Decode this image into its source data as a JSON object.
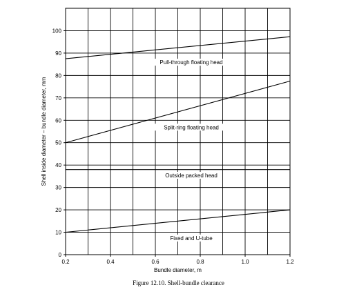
{
  "chart_data": {
    "type": "line",
    "xlabel": "Bundle diameter, m",
    "ylabel": "Shell inside diameter – bundle diameter, mm",
    "xlim": [
      0.2,
      1.2
    ],
    "ylim": [
      0,
      110
    ],
    "x_ticks": [
      0.2,
      0.4,
      0.6,
      0.8,
      1.0,
      1.2
    ],
    "x_tick_labels": [
      "0.2",
      "0.4",
      "0.6",
      "0.8",
      "1.0",
      "1.2"
    ],
    "y_ticks": [
      0,
      10,
      20,
      30,
      40,
      50,
      60,
      70,
      80,
      90,
      100
    ],
    "y_tick_labels": [
      "0",
      "10",
      "20",
      "30",
      "40",
      "50",
      "60",
      "70",
      "80",
      "90",
      "100"
    ],
    "grid": true,
    "series": [
      {
        "name": "Pull-through floating head",
        "x": [
          0.2,
          1.2
        ],
        "y": [
          87.5,
          97.3
        ],
        "label_at": [
          0.76,
          85
        ]
      },
      {
        "name": "Split-ring floating head",
        "x": [
          0.2,
          1.2
        ],
        "y": [
          50,
          77.5
        ],
        "label_at": [
          0.76,
          56
        ]
      },
      {
        "name": "Outside packed head",
        "x": [
          0.2,
          1.2
        ],
        "y": [
          38,
          38
        ],
        "label_at": [
          0.76,
          34.5
        ]
      },
      {
        "name": "Fixed and U-tube",
        "x": [
          0.2,
          1.2
        ],
        "y": [
          10,
          20
        ],
        "label_at": [
          0.76,
          6.5
        ]
      }
    ]
  },
  "caption": "Figure 12.10.   Shell-bundle clearance"
}
